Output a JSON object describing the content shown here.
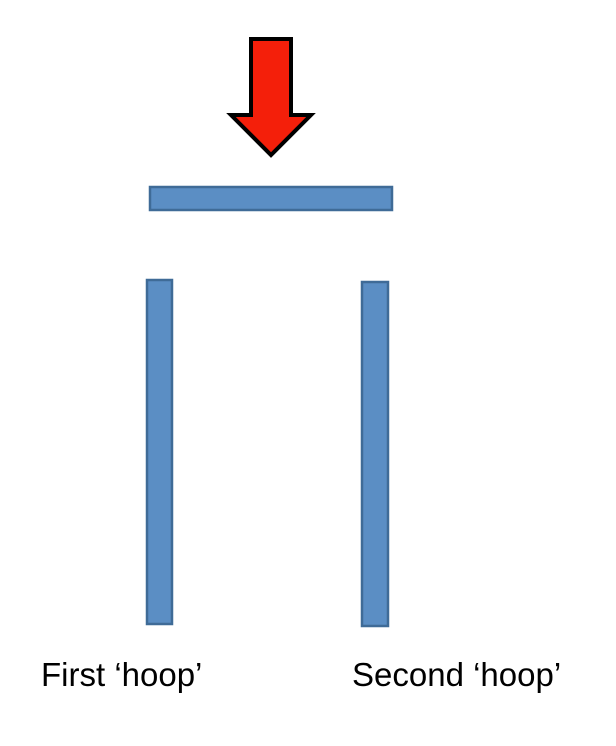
{
  "colors": {
    "bar_fill": "#5B8EC4",
    "bar_stroke": "#3F6B97",
    "arrow_fill": "#F41F0A",
    "arrow_stroke": "#000000",
    "text": "#000000"
  },
  "arrow": {
    "direction": "down",
    "icon": "down-arrow-icon"
  },
  "labels": {
    "first_hoop": "First ‘hoop’",
    "second_hoop": "Second ‘hoop’"
  }
}
